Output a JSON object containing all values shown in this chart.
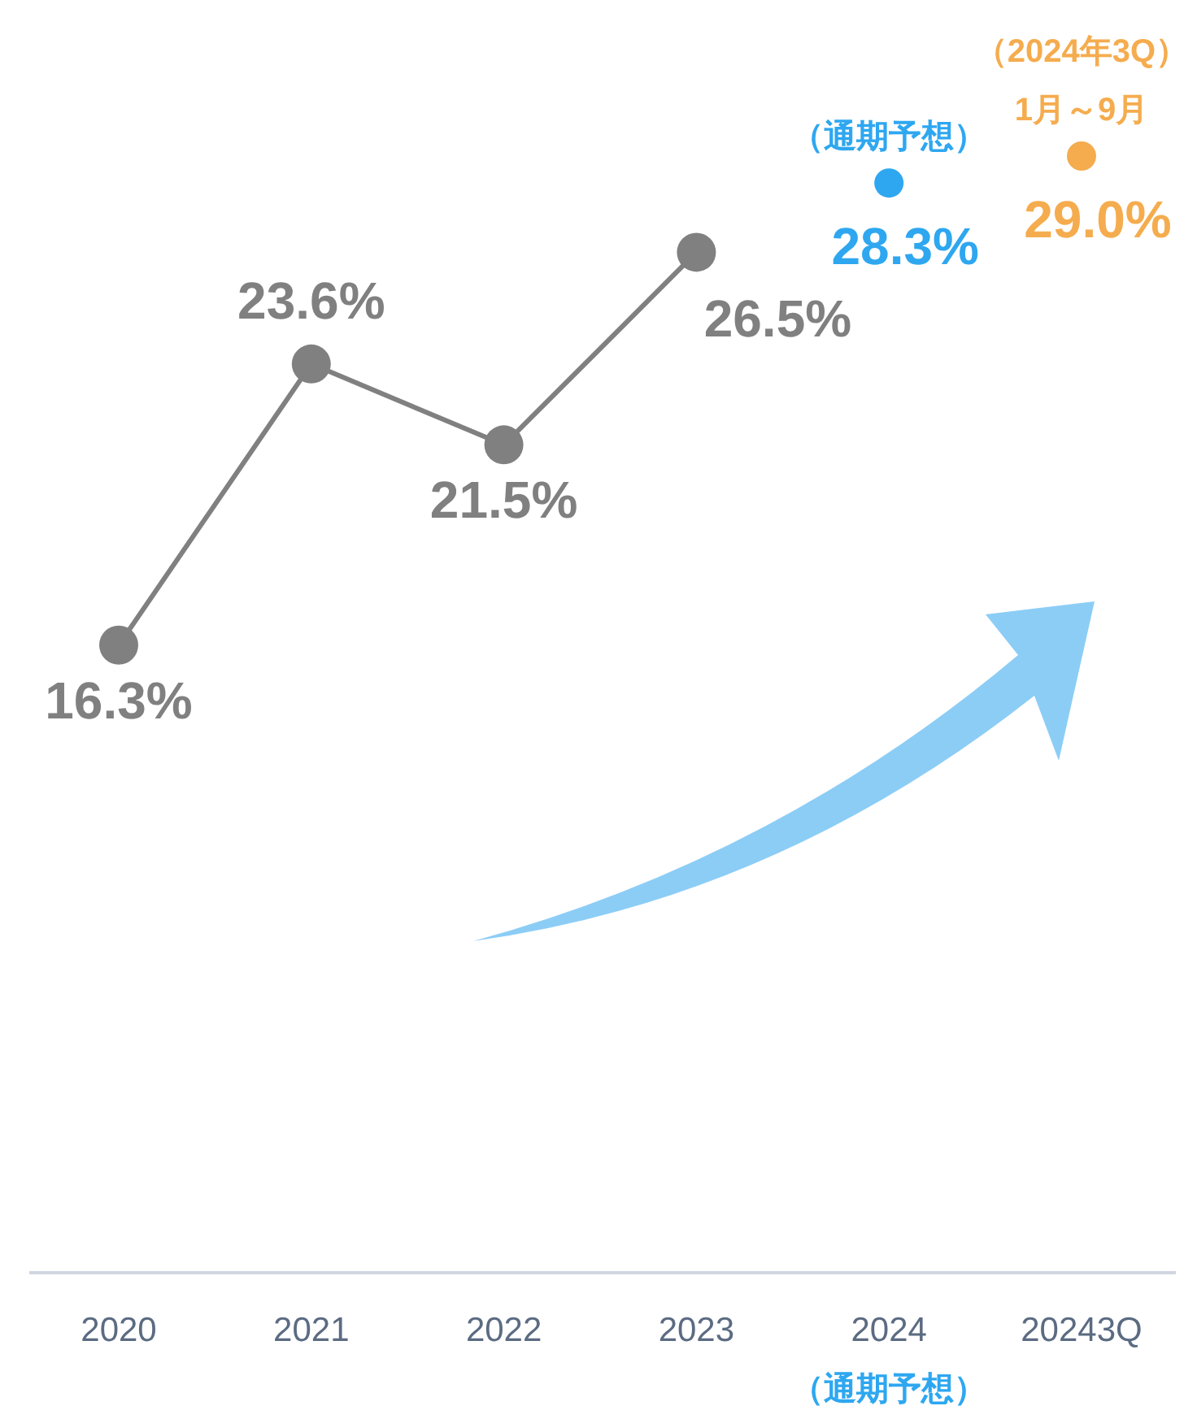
{
  "chart_data": {
    "type": "line",
    "categories": [
      "2020",
      "2021",
      "2022",
      "2023",
      "2024",
      "20243Q"
    ],
    "marker": "circle",
    "line_style": "solid",
    "data_labels": true,
    "tick_labels": "x",
    "series": [
      {
        "color": "#808080",
        "values": [
          16.3,
          23.6,
          21.5,
          26.5,
          null,
          null
        ],
        "value_labels": [
          "16.3%",
          "23.6%",
          "21.5%",
          "26.5%",
          null,
          null
        ]
      },
      {
        "type": "scatter",
        "color": "#2ea7f0",
        "values": [
          null,
          null,
          null,
          null,
          28.3,
          null
        ],
        "value_labels": [
          null,
          null,
          null,
          null,
          "28.3%",
          null
        ]
      },
      {
        "type": "scatter",
        "color": "#f5ac4e",
        "values": [
          null,
          null,
          null,
          null,
          null,
          29.0
        ],
        "value_labels": [
          null,
          null,
          null,
          null,
          null,
          "29.0%"
        ]
      }
    ],
    "annotations": [
      "（通期予想）",
      "（2024年3Q）\n1月～9月",
      "（通期予想）"
    ]
  }
}
